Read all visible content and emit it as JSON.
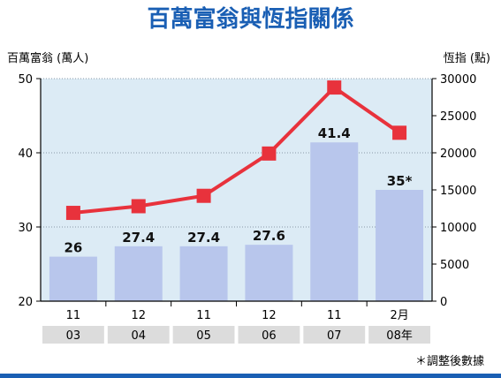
{
  "chart_data": {
    "type": "bar",
    "title": "百萬富翁與恆指關係",
    "left_axis_label": "百萬富翁 (萬人)",
    "right_axis_label": "恆指 (點)",
    "categories": [
      {
        "month": "11",
        "year": "03"
      },
      {
        "month": "12",
        "year": "04"
      },
      {
        "month": "11",
        "year": "05"
      },
      {
        "month": "12",
        "year": "06"
      },
      {
        "month": "11",
        "year": "07"
      },
      {
        "month": "2月",
        "year": "08年"
      }
    ],
    "series": [
      {
        "axis": "left",
        "type": "bar",
        "color": "#b8c6ec",
        "values": [
          26,
          27.4,
          27.4,
          27.6,
          41.4,
          35
        ],
        "labels": [
          "26",
          "27.4",
          "27.4",
          "27.6",
          "41.4",
          "35*"
        ]
      },
      {
        "axis": "right",
        "type": "line",
        "color": "#e8323c",
        "values": [
          11900,
          12800,
          14200,
          19900,
          28800,
          22700
        ]
      }
    ],
    "left_ylim": [
      20,
      50
    ],
    "left_ticks": [
      20,
      30,
      40,
      50
    ],
    "right_ylim": [
      0,
      30000
    ],
    "right_ticks": [
      0,
      5000,
      10000,
      15000,
      20000,
      25000,
      30000
    ],
    "footnote": "＊調整後數據",
    "colors": {
      "title": "#1a5fb4",
      "plot_bg": "#dcebf5",
      "bottom_bar": "#1a5fb4"
    }
  }
}
